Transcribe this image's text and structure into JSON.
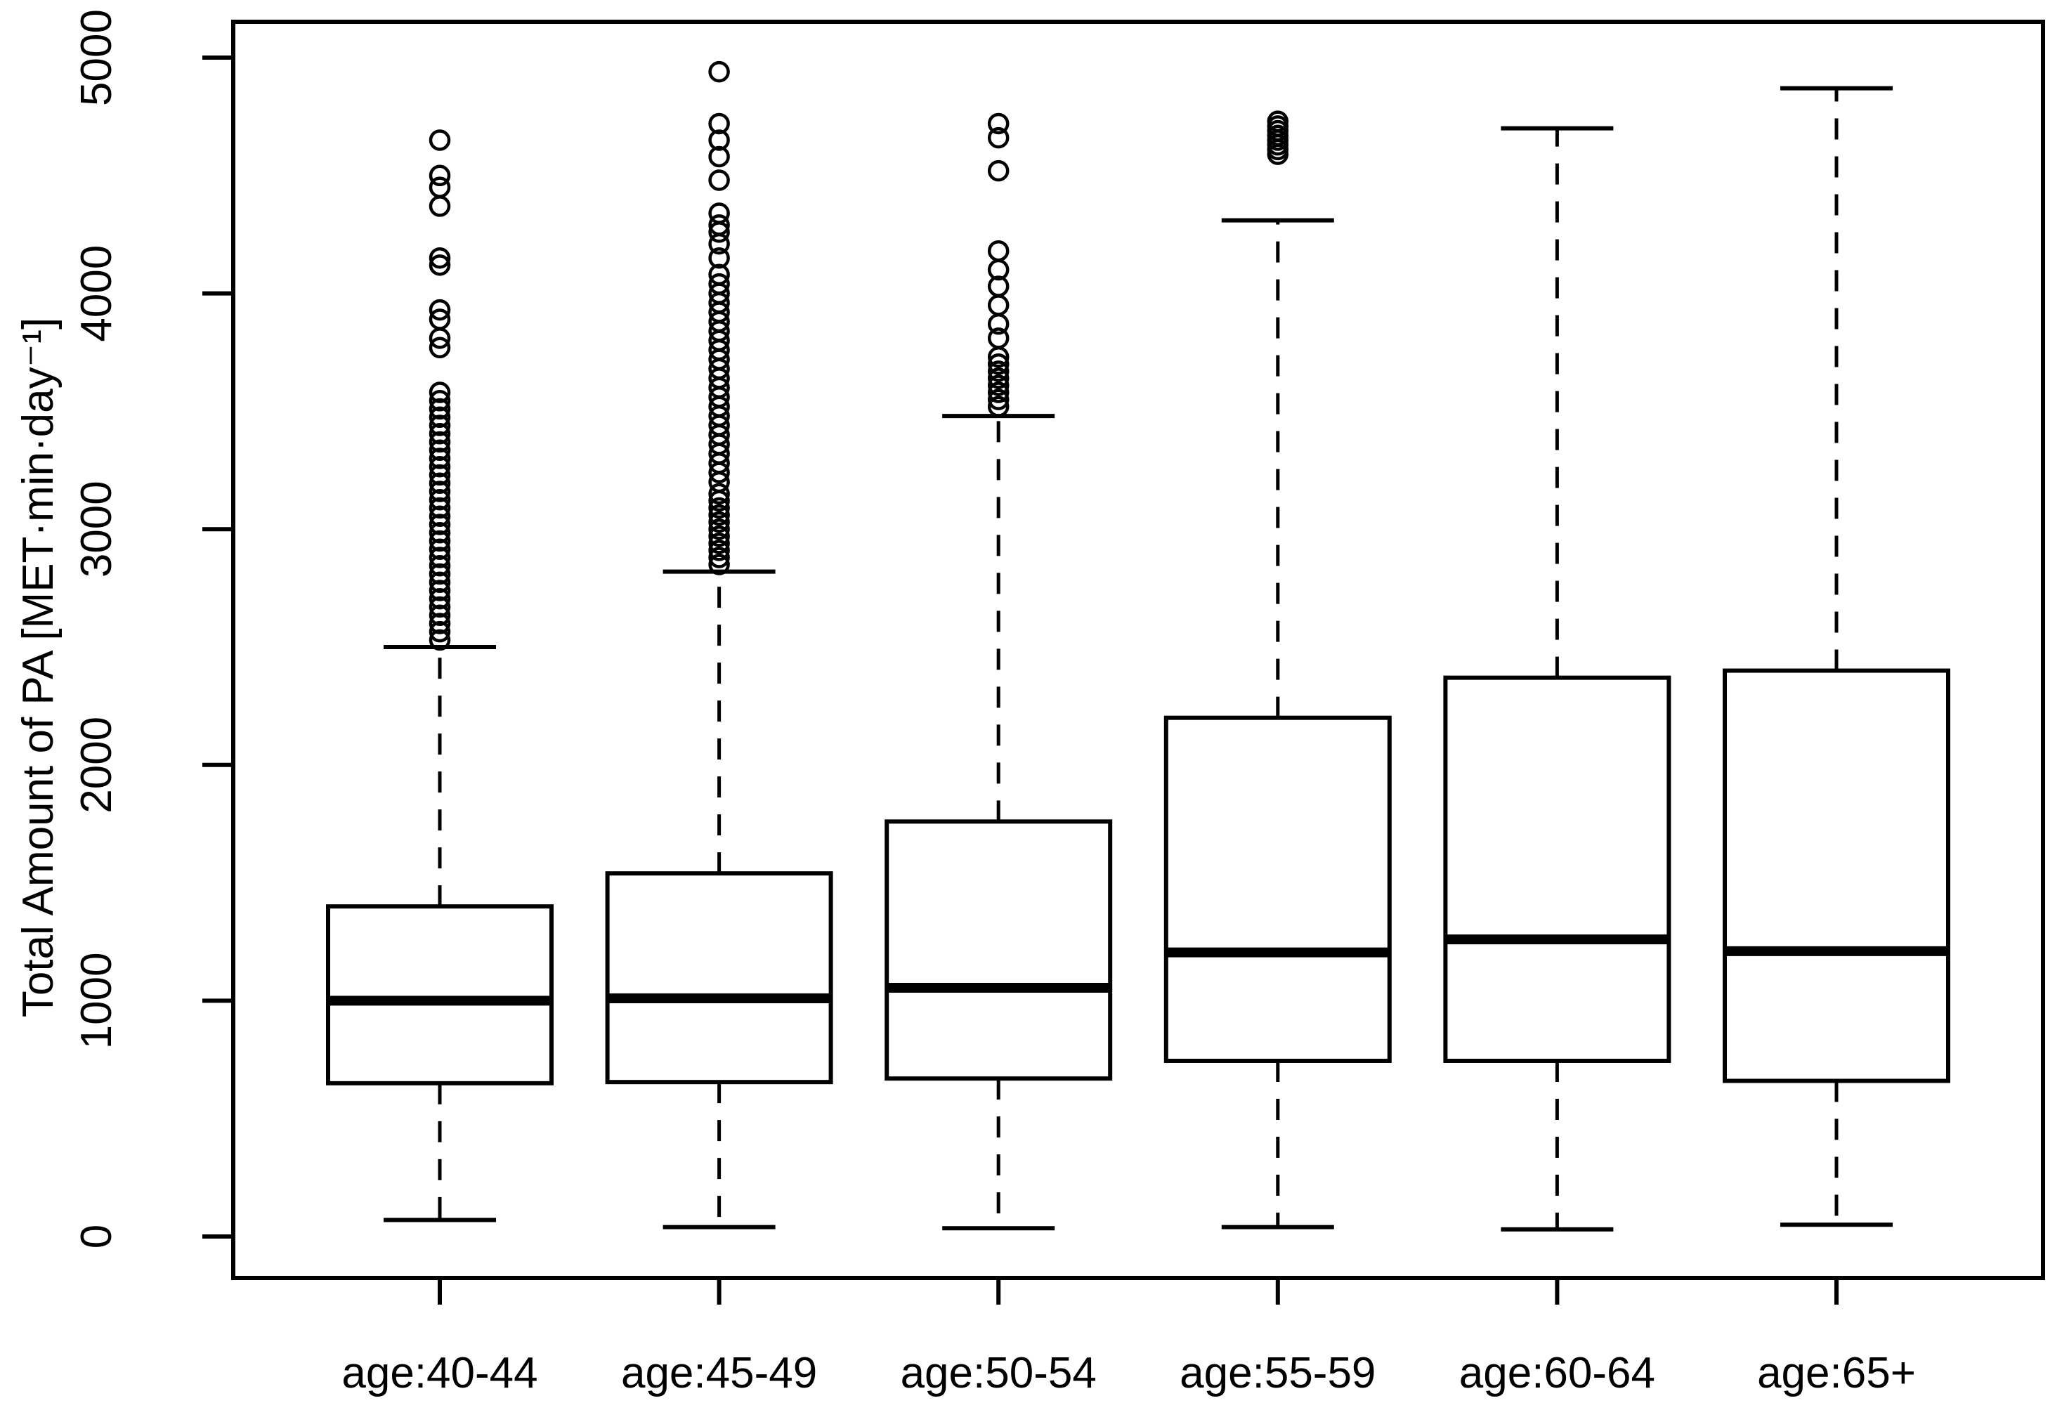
{
  "figure": {
    "background": "#ffffff",
    "foreground": "#000000"
  },
  "chart_data": {
    "type": "boxplot",
    "title": "",
    "xlabel": "",
    "ylabel": "Total Amount of PA [MET·min·day⁻¹]",
    "grid": false,
    "legend": null,
    "y_axis": {
      "min": 0,
      "max": 5000,
      "ticks": [
        0,
        1000,
        2000,
        3000,
        4000,
        5000
      ]
    },
    "categories": [
      "age:40-44",
      "age:45-49",
      "age:50-54",
      "age:55-59",
      "age:60-64",
      "age:65+"
    ],
    "groups": [
      {
        "label": "age:40-44",
        "whisker_low": 70,
        "q1": 650,
        "median": 1000,
        "q3": 1400,
        "whisker_high": 2500,
        "outliers": [
          2530,
          2565,
          2600,
          2635,
          2670,
          2705,
          2740,
          2775,
          2810,
          2845,
          2880,
          2915,
          2950,
          2985,
          3020,
          3055,
          3090,
          3125,
          3160,
          3195,
          3230,
          3265,
          3300,
          3335,
          3370,
          3405,
          3440,
          3475,
          3510,
          3545,
          3580,
          3770,
          3810,
          3890,
          3930,
          4120,
          4150,
          4370,
          4450,
          4500,
          4650
        ]
      },
      {
        "label": "age:45-49",
        "whisker_low": 40,
        "q1": 655,
        "median": 1010,
        "q3": 1540,
        "whisker_high": 2820,
        "outliers": [
          2850,
          2880,
          2910,
          2940,
          2970,
          3000,
          3030,
          3060,
          3090,
          3120,
          3150,
          3200,
          3240,
          3280,
          3320,
          3360,
          3400,
          3440,
          3480,
          3520,
          3560,
          3600,
          3640,
          3680,
          3720,
          3760,
          3800,
          3840,
          3880,
          3920,
          3960,
          4000,
          4040,
          4080,
          4150,
          4210,
          4260,
          4290,
          4340,
          4480,
          4580,
          4650,
          4720,
          4940
        ]
      },
      {
        "label": "age:50-54",
        "whisker_low": 35,
        "q1": 670,
        "median": 1055,
        "q3": 1760,
        "whisker_high": 3480,
        "outliers": [
          3520,
          3550,
          3580,
          3610,
          3640,
          3670,
          3700,
          3730,
          3810,
          3870,
          3950,
          4030,
          4100,
          4180,
          4520,
          4660,
          4720
        ]
      },
      {
        "label": "age:55-59",
        "whisker_low": 40,
        "q1": 745,
        "median": 1205,
        "q3": 2200,
        "whisker_high": 4310,
        "outliers": [
          4590,
          4610,
          4630,
          4650,
          4670,
          4690,
          4710,
          4730
        ]
      },
      {
        "label": "age:60-64",
        "whisker_low": 30,
        "q1": 745,
        "median": 1260,
        "q3": 2370,
        "whisker_high": 4700,
        "outliers": []
      },
      {
        "label": "age:65+",
        "whisker_low": 50,
        "q1": 660,
        "median": 1210,
        "q3": 2400,
        "whisker_high": 4870,
        "outliers": []
      }
    ]
  }
}
